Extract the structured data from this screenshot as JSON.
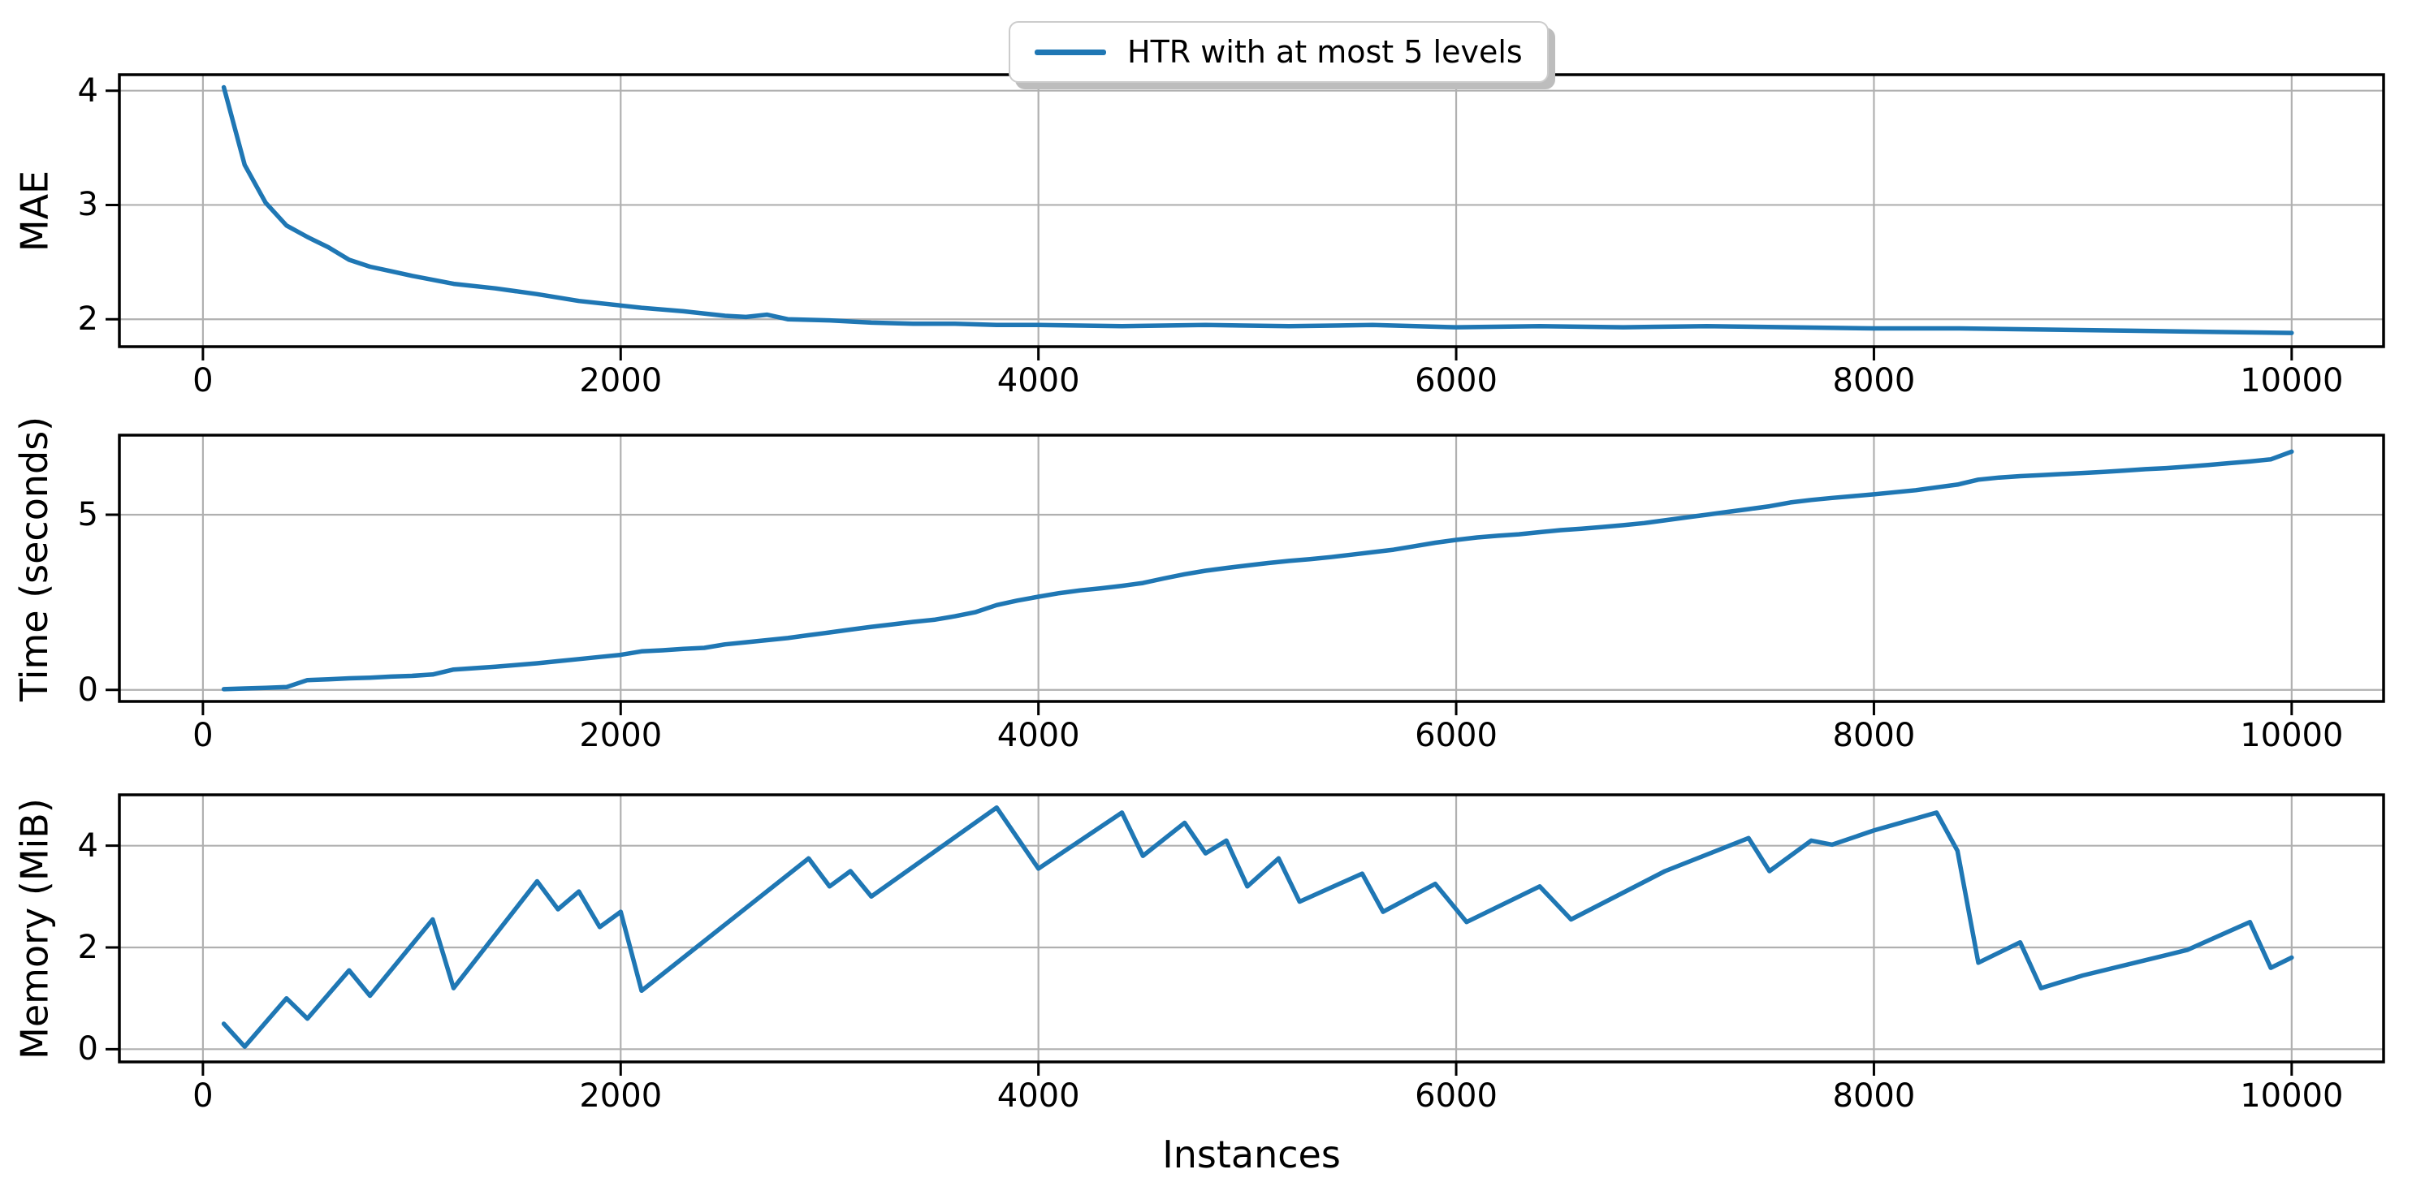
{
  "figure": {
    "background": "#ffffff"
  },
  "legend": {
    "label": "HTR with at most 5 levels",
    "line_color": "#1f77b4"
  },
  "xlabel": "Instances",
  "style": {
    "line_color": "#1f77b4",
    "grid_color": "#b0b0b0",
    "spine_color": "#000000",
    "text_color": "#000000"
  },
  "chart_data": [
    {
      "type": "line",
      "series_name": "HTR with at most 5 levels",
      "ylabel": "MAE",
      "xlabel": "",
      "grid": true,
      "legend_position": "top-center",
      "xlim": [
        -400,
        10440
      ],
      "ylim": [
        1.76,
        4.14
      ],
      "xticks": [
        0,
        2000,
        4000,
        6000,
        8000,
        10000
      ],
      "yticks": [
        2,
        3,
        4
      ],
      "x": [
        100,
        200,
        300,
        400,
        500,
        600,
        700,
        800,
        900,
        1000,
        1200,
        1400,
        1600,
        1800,
        2000,
        2100,
        2300,
        2500,
        2600,
        2700,
        2800,
        3000,
        3200,
        3400,
        3600,
        3800,
        4000,
        4400,
        4800,
        5200,
        5600,
        6000,
        6400,
        6800,
        7200,
        7600,
        8000,
        8400,
        8800,
        9200,
        9600,
        10000
      ],
      "y": [
        4.03,
        3.35,
        3.02,
        2.82,
        2.72,
        2.63,
        2.52,
        2.46,
        2.42,
        2.38,
        2.31,
        2.27,
        2.22,
        2.16,
        2.12,
        2.1,
        2.07,
        2.03,
        2.02,
        2.04,
        2.0,
        1.99,
        1.97,
        1.96,
        1.96,
        1.95,
        1.95,
        1.94,
        1.95,
        1.94,
        1.95,
        1.93,
        1.94,
        1.93,
        1.94,
        1.93,
        1.92,
        1.92,
        1.91,
        1.9,
        1.89,
        1.88
      ]
    },
    {
      "type": "line",
      "series_name": "HTR with at most 5 levels",
      "ylabel": "Time (seconds)",
      "xlabel": "",
      "grid": true,
      "xlim": [
        -400,
        10440
      ],
      "ylim": [
        -0.33,
        7.27
      ],
      "xticks": [
        0,
        2000,
        4000,
        6000,
        8000,
        10000
      ],
      "yticks": [
        0,
        5
      ],
      "x": [
        100,
        200,
        300,
        400,
        500,
        600,
        700,
        800,
        900,
        1000,
        1100,
        1200,
        1300,
        1400,
        1500,
        1600,
        1700,
        1800,
        1900,
        2000,
        2100,
        2200,
        2300,
        2400,
        2500,
        2600,
        2700,
        2800,
        2900,
        3000,
        3100,
        3200,
        3300,
        3400,
        3500,
        3600,
        3700,
        3800,
        3900,
        4000,
        4100,
        4200,
        4300,
        4400,
        4500,
        4600,
        4700,
        4800,
        4900,
        5000,
        5100,
        5200,
        5300,
        5400,
        5500,
        5600,
        5700,
        5800,
        5900,
        6000,
        6100,
        6200,
        6300,
        6400,
        6500,
        6600,
        6700,
        6800,
        6900,
        7000,
        7100,
        7200,
        7300,
        7400,
        7500,
        7600,
        7700,
        7800,
        7900,
        8000,
        8100,
        8200,
        8300,
        8400,
        8500,
        8600,
        8700,
        8800,
        8900,
        9000,
        9100,
        9200,
        9300,
        9400,
        9500,
        9600,
        9700,
        9800,
        9900,
        10000
      ],
      "y": [
        0.02,
        0.04,
        0.06,
        0.08,
        0.28,
        0.3,
        0.33,
        0.35,
        0.38,
        0.4,
        0.44,
        0.58,
        0.62,
        0.66,
        0.71,
        0.76,
        0.82,
        0.88,
        0.94,
        1.0,
        1.1,
        1.13,
        1.17,
        1.2,
        1.3,
        1.36,
        1.42,
        1.48,
        1.56,
        1.64,
        1.72,
        1.8,
        1.87,
        1.94,
        2.0,
        2.1,
        2.22,
        2.42,
        2.55,
        2.66,
        2.76,
        2.84,
        2.9,
        2.97,
        3.05,
        3.18,
        3.3,
        3.4,
        3.48,
        3.55,
        3.62,
        3.68,
        3.73,
        3.79,
        3.86,
        3.93,
        4.0,
        4.1,
        4.2,
        4.28,
        4.35,
        4.4,
        4.44,
        4.5,
        4.56,
        4.6,
        4.65,
        4.7,
        4.76,
        4.84,
        4.92,
        5.0,
        5.08,
        5.16,
        5.24,
        5.35,
        5.42,
        5.48,
        5.53,
        5.58,
        5.64,
        5.7,
        5.78,
        5.86,
        6.0,
        6.06,
        6.1,
        6.13,
        6.16,
        6.19,
        6.22,
        6.26,
        6.3,
        6.33,
        6.37,
        6.42,
        6.47,
        6.52,
        6.58,
        6.8
      ]
    },
    {
      "type": "line",
      "series_name": "HTR with at most 5 levels",
      "ylabel": "Memory (MiB)",
      "xlabel": "Instances",
      "grid": true,
      "xlim": [
        -400,
        10440
      ],
      "ylim": [
        -0.25,
        5.0
      ],
      "xticks": [
        0,
        2000,
        4000,
        6000,
        8000,
        10000
      ],
      "yticks": [
        0,
        2,
        4
      ],
      "x": [
        100,
        200,
        400,
        500,
        700,
        800,
        1100,
        1200,
        1600,
        1700,
        1800,
        1900,
        2000,
        2100,
        2900,
        3000,
        3100,
        3200,
        3800,
        4000,
        4400,
        4500,
        4700,
        4800,
        4900,
        5000,
        5150,
        5250,
        5550,
        5650,
        5900,
        6050,
        6400,
        6550,
        7000,
        7400,
        7500,
        7700,
        7800,
        8000,
        8300,
        8400,
        8500,
        8700,
        8800,
        9000,
        9300,
        9500,
        9800,
        9900,
        10000
      ],
      "y": [
        0.5,
        0.05,
        1.0,
        0.6,
        1.55,
        1.05,
        2.55,
        1.2,
        3.3,
        2.75,
        3.1,
        2.4,
        2.7,
        1.15,
        3.75,
        3.2,
        3.5,
        3.0,
        4.75,
        3.55,
        4.65,
        3.8,
        4.45,
        3.85,
        4.1,
        3.2,
        3.75,
        2.9,
        3.45,
        2.7,
        3.25,
        2.5,
        3.2,
        2.55,
        3.5,
        4.15,
        3.5,
        4.1,
        4.02,
        4.3,
        4.65,
        3.9,
        1.7,
        2.1,
        1.2,
        1.45,
        1.75,
        1.95,
        2.5,
        1.6,
        1.8
      ]
    }
  ]
}
